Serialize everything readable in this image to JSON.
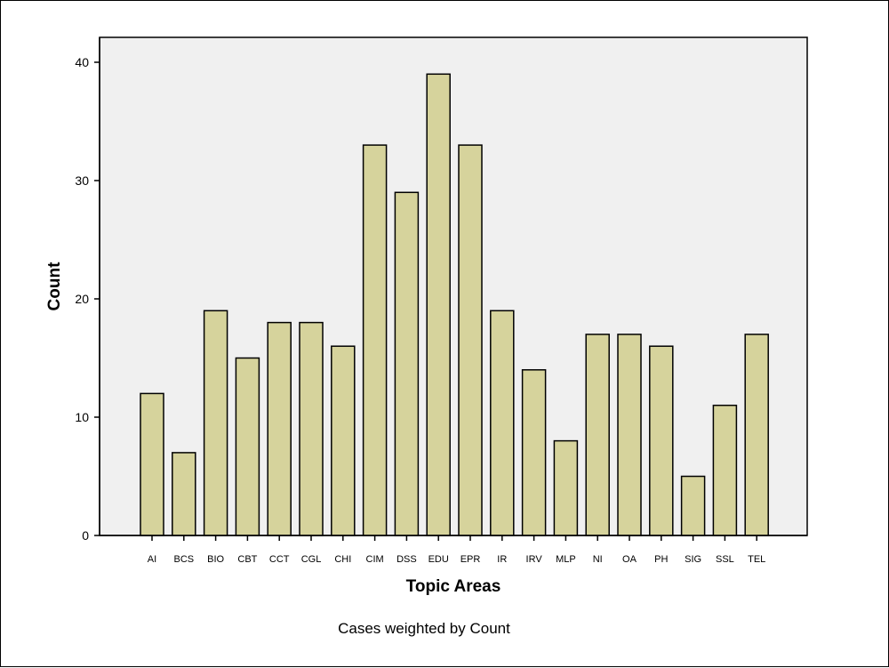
{
  "chart_data": {
    "type": "bar",
    "xlabel": "Topic Areas",
    "ylabel": "Count",
    "footnote": "Cases weighted by Count",
    "categories": [
      "AI",
      "BCS",
      "BIO",
      "CBT",
      "CCT",
      "CGL",
      "CHI",
      "CIM",
      "DSS",
      "EDU",
      "EPR",
      "IR",
      "IRV",
      "MLP",
      "NI",
      "OA",
      "PH",
      "SIG",
      "SSL",
      "TEL"
    ],
    "values": [
      12,
      7,
      19,
      15,
      18,
      18,
      16,
      33,
      29,
      39,
      33,
      19,
      14,
      8,
      17,
      17,
      16,
      5,
      11,
      17
    ],
    "ylim": [
      0,
      40
    ],
    "yticks": [
      0,
      10,
      20,
      30,
      40
    ],
    "grid": false,
    "colors": {
      "bar_fill": "#d6d39c",
      "bar_stroke": "#000000",
      "plot_bg": "#f0f0f0"
    }
  }
}
